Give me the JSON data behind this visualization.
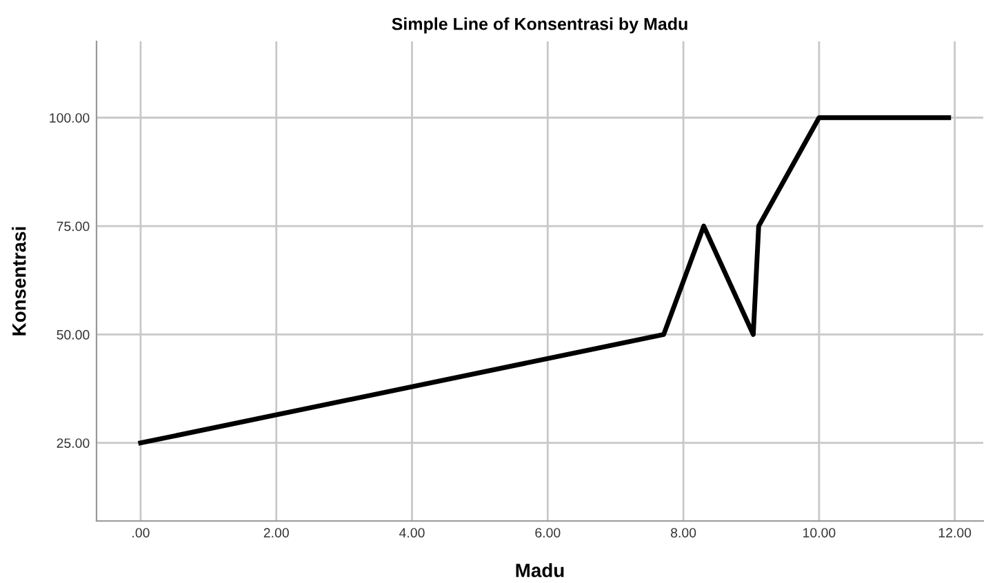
{
  "chart_data": {
    "type": "line",
    "title": "Simple Line of Konsentrasi by Madu",
    "xlabel": "Madu",
    "ylabel": "Konsentrasi",
    "x": [
      0,
      7.71,
      8.3,
      9.03,
      9.11,
      10.0,
      11.91
    ],
    "series": [
      {
        "color": "#000000",
        "values": [
          25,
          50,
          75,
          50,
          75,
          100,
          100
        ]
      }
    ],
    "xlim": [
      -0.65,
      12.42
    ],
    "ylim": [
      7,
      117.6
    ],
    "xticks": [
      {
        "value": 0,
        "label": ".00"
      },
      {
        "value": 2,
        "label": "2.00"
      },
      {
        "value": 4,
        "label": "4.00"
      },
      {
        "value": 6,
        "label": "6.00"
      },
      {
        "value": 8,
        "label": "8.00"
      },
      {
        "value": 10,
        "label": "10.00"
      },
      {
        "value": 12,
        "label": "12.00"
      }
    ],
    "yticks": [
      {
        "value": 25,
        "label": "25.00"
      },
      {
        "value": 50,
        "label": "50.00"
      },
      {
        "value": 75,
        "label": "75.00"
      },
      {
        "value": 100,
        "label": "100.00"
      }
    ],
    "grid": true,
    "legend": false,
    "marker": "none",
    "line_style": "solid"
  }
}
